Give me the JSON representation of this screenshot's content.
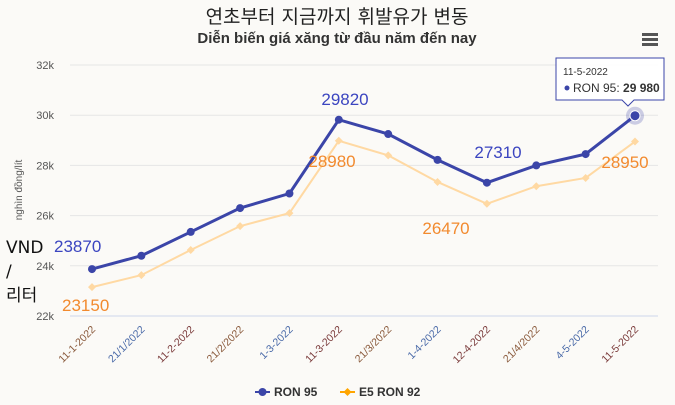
{
  "chart_data": {
    "type": "line",
    "title": "연초부터 지금까지 휘발유가 변동",
    "subtitle": "Diễn biến giá xăng từ đầu năm đến nay",
    "ylabel": "nghìn đồng/lít",
    "side_label": [
      "VND",
      "/",
      "리터"
    ],
    "ylim": [
      22000,
      32000
    ],
    "yticks": [
      22000,
      24000,
      26000,
      28000,
      30000,
      32000
    ],
    "ytick_labels": [
      "22k",
      "24k",
      "26k",
      "28k",
      "30k",
      "32k"
    ],
    "grid": true,
    "legend_placement": "bottom",
    "categories": [
      "11-1-2022",
      "21/1/2022",
      "11-2-2022",
      "21/2/2022",
      "1-3-2022",
      "11-3-2022",
      "21/3/2022",
      "1-4-2022",
      "12-4-2022",
      "21/4/2022",
      "4-5-2022",
      "11-5-2022"
    ],
    "series": [
      {
        "name": "RON 95",
        "color": "#3b45a8",
        "values": [
          23870,
          24400,
          25350,
          26300,
          26880,
          29820,
          29250,
          28220,
          27310,
          28000,
          28450,
          29980
        ]
      },
      {
        "name": "E5 RON 92",
        "color": "#ffd9a3",
        "values": [
          23150,
          23630,
          24630,
          25580,
          26100,
          28980,
          28400,
          27340,
          26470,
          27170,
          27500,
          28950
        ]
      }
    ],
    "annotations": [
      {
        "series": 0,
        "index": 0,
        "text": "23870"
      },
      {
        "series": 0,
        "index": 5,
        "text": "29820"
      },
      {
        "series": 0,
        "index": 8,
        "text": "27310"
      },
      {
        "series": 1,
        "index": 0,
        "text": "23150"
      },
      {
        "series": 1,
        "index": 5,
        "text": "28980"
      },
      {
        "series": 1,
        "index": 8,
        "text": "26470"
      },
      {
        "series": 1,
        "index": 11,
        "text": "28950"
      }
    ],
    "tooltip": {
      "date": "11-5-2022",
      "label": "RON 95: ",
      "value": "29 980"
    },
    "menu_icon": "hamburger-menu-icon"
  }
}
